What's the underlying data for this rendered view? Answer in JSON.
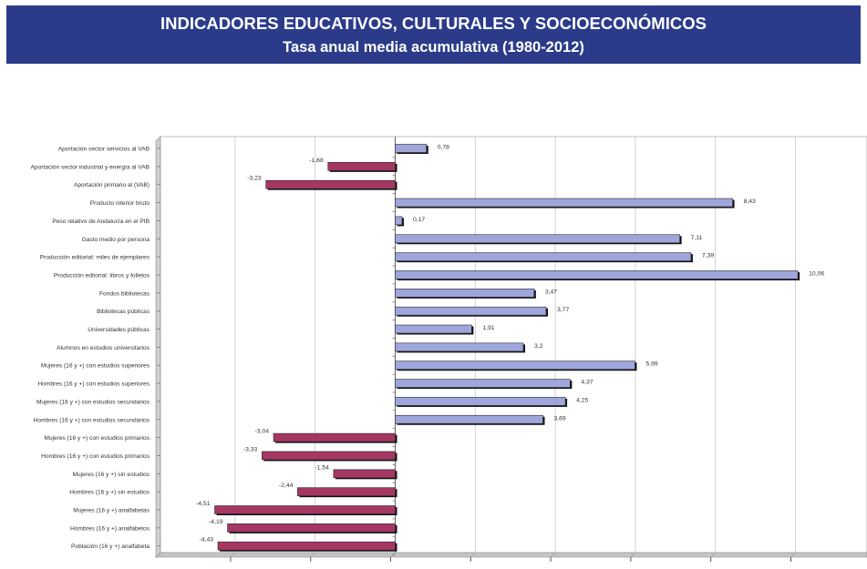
{
  "header": {
    "title": "INDICADORES EDUCATIVOS, CULTURALES Y SOCIOECONÓMICOS",
    "subtitle": "Tasa anual media acumulativa (1980-2012)"
  },
  "colors": {
    "header_bg": "#2b3b8a",
    "positive_bar": "#9ea6dc",
    "negative_bar": "#a53762",
    "bar_shadow": "#111111"
  },
  "chart_data": {
    "type": "bar",
    "orientation": "horizontal",
    "title": "",
    "xlabel": "",
    "ylabel": "",
    "xlim": [
      -6,
      11.5
    ],
    "grid": true,
    "legend": "none",
    "categories": [
      "Aportación sector servicios al VAB",
      "Aportación sector industrial y energía al VAB",
      "Aportación primario al  (VAB)",
      "Producto interior bruto",
      "Peso relativo de Andalucía en el PIB",
      "Gasto medio por persona",
      "Producción editorial: miles de ejemplares",
      "Producción editorial: libros y folletos",
      "Fondos bibliotecas",
      "Bibliotecas públicas",
      "Universidades públicas",
      "Alumnos en estudios universitarios",
      "Mujeres  (16 y +)  con estudios superiores",
      "Hombres  (16 y +)  con estudios superiores",
      "Mujeres  (16 y +)  con estudios secundarios",
      "Hombres  (16 y +)  con estudios secundarios",
      "Mujeres  (16 y +)  con estudios primarios",
      "Hombres  (16 y +)  con estudios primarios",
      "Mujeres  (16 y +)  sin estudios",
      "Hombres  (16 y +)  sin estudios",
      "Mujeres  (16 y +) analfabetas",
      "Hombres  (16 y +) analfabetos",
      "Población (16 y +) analfabeta"
    ],
    "values": [
      0.78,
      -1.68,
      -3.23,
      8.43,
      0.17,
      7.11,
      7.39,
      10.06,
      3.47,
      3.77,
      1.91,
      3.2,
      5.99,
      4.37,
      4.25,
      3.69,
      -3.04,
      -3.33,
      -1.54,
      -2.44,
      -4.51,
      -4.19,
      -4.43
    ],
    "value_labels": [
      "0,78",
      "-1,68",
      "-3,23",
      "8,43",
      "0,17",
      "7,11",
      "7,39",
      "10,06",
      "3,47",
      "3,77",
      "1,91",
      "3,2",
      "5,99",
      "4,37",
      "4,25",
      "3,69",
      "-3,04",
      "-3,33",
      "-1,54",
      "-2,44",
      "-4,51",
      "-4,19",
      "-4,43"
    ]
  }
}
